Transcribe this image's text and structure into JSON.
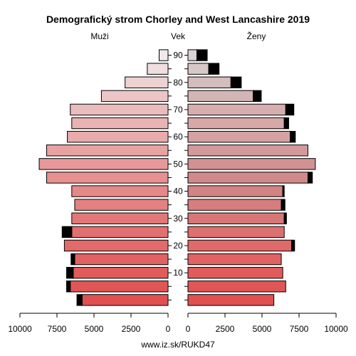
{
  "chart_data": {
    "type": "bar",
    "title": "Demografický strom Chorley and West Lancashire 2019",
    "male_label": "Muži",
    "female_label": "Ženy",
    "age_axis_label": "Vek",
    "source": "www.iz.sk/RUKD47",
    "age_groups": [
      "0-4",
      "5-9",
      "10-14",
      "15-19",
      "20-24",
      "25-29",
      "30-34",
      "35-39",
      "40-44",
      "45-49",
      "50-54",
      "55-59",
      "60-64",
      "65-69",
      "70-74",
      "75-79",
      "80-84",
      "85-89",
      "90+"
    ],
    "age_tick_labels": [
      "10",
      "20",
      "30",
      "40",
      "50",
      "60",
      "70",
      "80",
      "90"
    ],
    "age_tick_groups": [
      2,
      4,
      6,
      8,
      10,
      12,
      14,
      16,
      18
    ],
    "x_ticks": [
      10000,
      7500,
      5000,
      2500,
      0,
      2500,
      5000,
      7500,
      10000
    ],
    "xlim": [
      0,
      10000
    ],
    "series": [
      {
        "name": "Muži",
        "values": [
          5800,
          6600,
          6400,
          6300,
          7000,
          6500,
          6500,
          6300,
          6500,
          8200,
          8700,
          8200,
          6800,
          6500,
          6600,
          4500,
          2900,
          1400,
          600
        ],
        "excess": [
          350,
          250,
          450,
          250,
          0,
          650,
          0,
          0,
          0,
          0,
          0,
          0,
          0,
          0,
          0,
          0,
          0,
          0,
          0
        ]
      },
      {
        "name": "Ženy",
        "values": [
          5800,
          6600,
          6400,
          6300,
          7000,
          6500,
          6500,
          6300,
          6400,
          8100,
          8600,
          8100,
          6900,
          6500,
          6600,
          4400,
          2900,
          1400,
          600
        ],
        "excess": [
          0,
          0,
          0,
          0,
          200,
          0,
          150,
          250,
          100,
          300,
          0,
          0,
          350,
          300,
          550,
          550,
          700,
          700,
          700
        ]
      }
    ],
    "colors": [
      "#e05050",
      "#e05656",
      "#e15b5b",
      "#e16262",
      "#e26a6a",
      "#e37070",
      "#e37878",
      "#e48181",
      "#e58888",
      "#e69090",
      "#e79999",
      "#e8a2a2",
      "#e9abab",
      "#eab3b3",
      "#ebbcbc",
      "#ecc6c6",
      "#eed2d2",
      "#f0dfdf",
      "#f1e9e9"
    ],
    "female_colors": [
      "#e05050",
      "#e05656",
      "#e15b5b",
      "#e16262",
      "#e06a6a",
      "#dc7070",
      "#d97676",
      "#d67d7d",
      "#d28383",
      "#d18a8a",
      "#d39292",
      "#d49999",
      "#d6a1a1",
      "#d6a8a8",
      "#d6aeae",
      "#d4b5b5",
      "#d4bdbd",
      "#d8c8c8",
      "#dcd4d4"
    ],
    "excess_color": "#000000"
  }
}
